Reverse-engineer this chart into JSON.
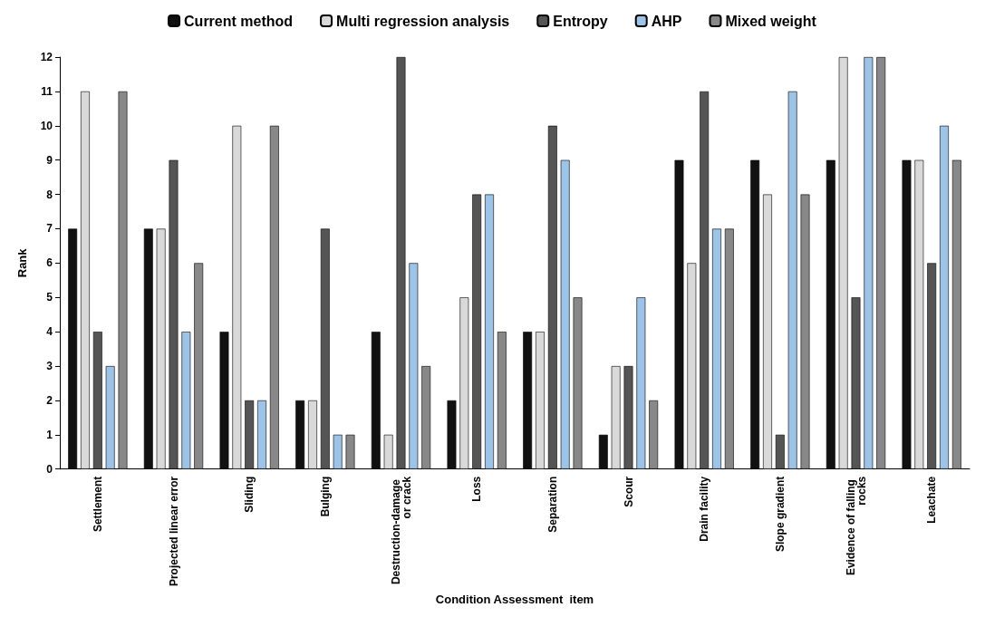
{
  "chart_data": {
    "type": "bar",
    "xlabel": "Condition Assessment  item",
    "ylabel": "Rank",
    "categories": [
      "Settlement",
      "Projected linear error",
      "Sliding",
      "Bulging",
      "Destruction-damage or crack",
      "Loss",
      "Separation",
      "Scour",
      "Drain facility",
      "Slope gradient",
      "Evidence of falling rocks",
      "Leachate"
    ],
    "series": [
      {
        "name": "Current method",
        "color": "#111111",
        "values": [
          7,
          7,
          4,
          2,
          4,
          2,
          4,
          1,
          9,
          9,
          9,
          9
        ]
      },
      {
        "name": "Multi regression analysis",
        "color": "#d9d9d9",
        "values": [
          11,
          7,
          10,
          2,
          1,
          5,
          4,
          3,
          6,
          8,
          12,
          9
        ]
      },
      {
        "name": "Entropy",
        "color": "#555555",
        "values": [
          4,
          9,
          2,
          7,
          12,
          8,
          10,
          3,
          11,
          1,
          5,
          6
        ]
      },
      {
        "name": "AHP",
        "color": "#9dc3e6",
        "values": [
          3,
          4,
          2,
          1,
          6,
          8,
          9,
          5,
          7,
          11,
          12,
          10
        ]
      },
      {
        "name": "Mixed weight",
        "color": "#888888",
        "values": [
          11,
          6,
          10,
          1,
          3,
          4,
          5,
          2,
          7,
          8,
          12,
          9
        ]
      }
    ],
    "ylim": [
      0,
      12
    ],
    "yticks": [
      0,
      1,
      2,
      3,
      4,
      5,
      6,
      7,
      8,
      9,
      10,
      11,
      12
    ],
    "grid": false,
    "legend": "top"
  }
}
